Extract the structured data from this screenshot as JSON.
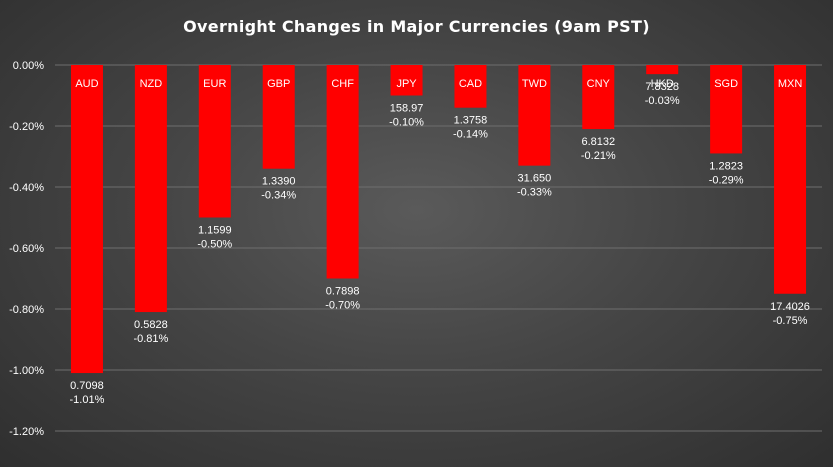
{
  "chart_data": {
    "type": "bar",
    "title": "Overnight Changes in Major Currencies (9am PST)",
    "xlabel": "",
    "ylabel": "",
    "ylim": [
      -1.2,
      0
    ],
    "y_ticks": [
      0,
      -0.2,
      -0.4,
      -0.6,
      -0.8,
      -1.0,
      -1.2
    ],
    "y_tick_labels": [
      "0.00%",
      "-0.20%",
      "-0.40%",
      "-0.60%",
      "-0.80%",
      "-1.00%",
      "-1.20%"
    ],
    "grid": true,
    "legend": "none",
    "bar_color": "#ff0000",
    "categories": [
      "AUD",
      "NZD",
      "EUR",
      "GBP",
      "CHF",
      "JPY",
      "CAD",
      "TWD",
      "CNY",
      "HKD",
      "SGD",
      "MXN"
    ],
    "values": [
      -1.01,
      -0.81,
      -0.5,
      -0.34,
      -0.7,
      -0.1,
      -0.14,
      -0.33,
      -0.21,
      -0.03,
      -0.29,
      -0.75
    ],
    "rates": [
      "0.7098",
      "0.5828",
      "1.1599",
      "1.3390",
      "0.7898",
      "158.97",
      "1.3758",
      "31.650",
      "6.8132",
      "7.8328",
      "1.2823",
      "17.4026"
    ],
    "value_labels": [
      "-1.01%",
      "-0.81%",
      "-0.50%",
      "-0.34%",
      "-0.70%",
      "-0.10%",
      "-0.14%",
      "-0.33%",
      "-0.21%",
      "-0.03%",
      "-0.29%",
      "-0.75%"
    ]
  }
}
